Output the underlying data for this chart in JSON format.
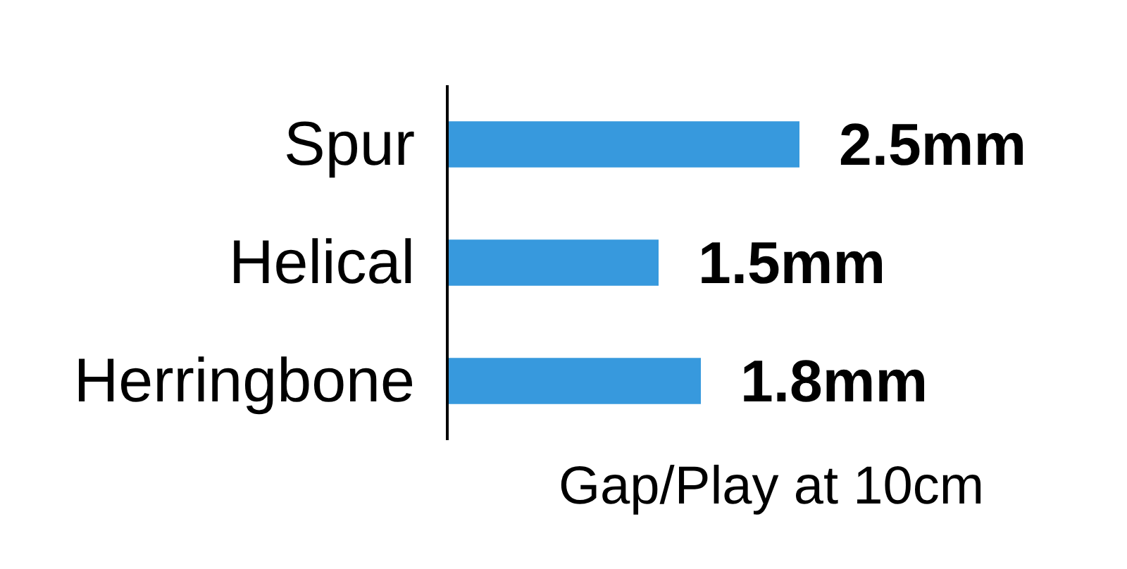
{
  "chart_data": {
    "type": "bar",
    "orientation": "horizontal",
    "categories": [
      "Spur",
      "Helical",
      "Herringbone"
    ],
    "values": [
      2.5,
      1.5,
      1.8
    ],
    "value_labels": [
      "2.5mm",
      "1.5mm",
      "1.8mm"
    ],
    "color": "#3799dd",
    "xlabel": "Gap/Play at 10cm",
    "tick_labels": "y",
    "grid": false
  }
}
